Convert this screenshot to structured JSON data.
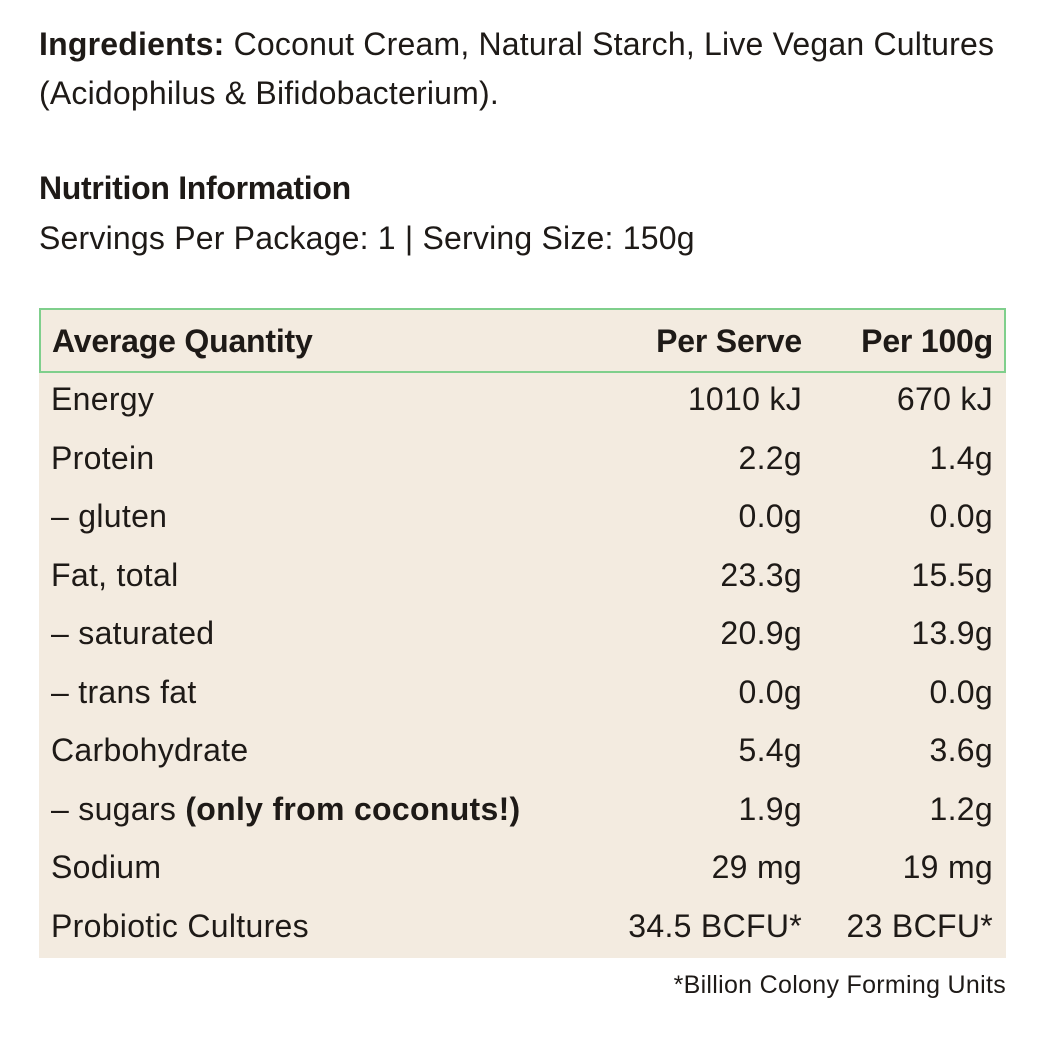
{
  "ingredients": {
    "label": "Ingredients:",
    "text": " Coconut Cream, Natural Starch, Live Vegan Cultures (Acidophilus & Bifidobacterium)."
  },
  "nutrition": {
    "title": "Nutrition Information",
    "servings": "Servings Per Package: 1 | Serving Size: 150g"
  },
  "table": {
    "headers": {
      "name": "Average Quantity",
      "per_serve": "Per Serve",
      "per_100g": "Per 100g"
    },
    "rows": [
      {
        "name": "Energy",
        "note": "",
        "per_serve": "1010 kJ",
        "per_100g": "670 kJ"
      },
      {
        "name": "Protein",
        "note": "",
        "per_serve": "2.2g",
        "per_100g": "1.4g"
      },
      {
        "name": "– gluten",
        "note": "",
        "per_serve": "0.0g",
        "per_100g": "0.0g"
      },
      {
        "name": "Fat, total",
        "note": "",
        "per_serve": "23.3g",
        "per_100g": "15.5g"
      },
      {
        "name": "– saturated",
        "note": "",
        "per_serve": "20.9g",
        "per_100g": "13.9g"
      },
      {
        "name": "– trans fat",
        "note": "",
        "per_serve": "0.0g",
        "per_100g": "0.0g"
      },
      {
        "name": "Carbohydrate",
        "note": "",
        "per_serve": "5.4g",
        "per_100g": "3.6g"
      },
      {
        "name": "– sugars ",
        "note": "(only from coconuts!)",
        "per_serve": "1.9g",
        "per_100g": "1.2g"
      },
      {
        "name": "Sodium",
        "note": "",
        "per_serve": "29 mg",
        "per_100g": "19 mg"
      },
      {
        "name": "Probiotic Cultures",
        "note": "",
        "per_serve": "34.5 BCFU*",
        "per_100g": "23 BCFU*"
      }
    ]
  },
  "footnote": "*Billion Colony Forming Units",
  "colors": {
    "text": "#1e1a17",
    "panel_background": "#f3ebe0",
    "header_border": "#7fcf8c"
  }
}
